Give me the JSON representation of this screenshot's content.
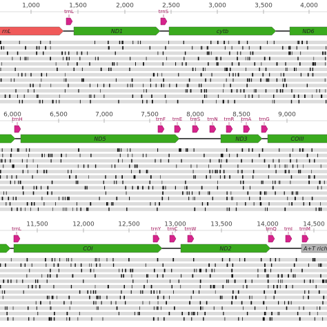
{
  "panels": [
    {
      "ruler": [
        "1,000",
        "1,500",
        "2,000",
        "2,500",
        "3,000",
        "3,500",
        "4,000"
      ],
      "genes": [
        {
          "label": "rnL"
        },
        {
          "label": "ND1"
        },
        {
          "label": "cytb"
        },
        {
          "label": "ND6"
        }
      ],
      "trnas": [
        {
          "label": "trnL"
        },
        {
          "label": "trnS"
        }
      ]
    },
    {
      "ruler": [
        "6,000",
        "6,500",
        "7,000",
        "7,500",
        "8,000",
        "8,500",
        "9,000"
      ],
      "genes": [
        {
          "label": "ND5"
        },
        {
          "label": "ND3"
        },
        {
          "label": "COIII"
        }
      ],
      "trnas": [
        {
          "label": "trnH"
        },
        {
          "label": "trnF"
        },
        {
          "label": "trnE"
        },
        {
          "label": "trnS"
        },
        {
          "label": "trnN"
        },
        {
          "label": "trnR"
        },
        {
          "label": "trnA"
        },
        {
          "label": "trnG"
        }
      ]
    },
    {
      "ruler": [
        "11,500",
        "12,000",
        "12,500",
        "13,000",
        "13,500",
        "14,000",
        "14,500"
      ],
      "genes": [
        {
          "label": "COI"
        },
        {
          "label": "ND2"
        },
        {
          "label": "A+T rich"
        }
      ],
      "trnas": [
        {
          "label": "trnL"
        },
        {
          "label": "trnY"
        },
        {
          "label": "trnC"
        },
        {
          "label": "trnW"
        },
        {
          "label": "trnQ"
        },
        {
          "label": "trnI"
        },
        {
          "label": "trnM"
        }
      ]
    }
  ]
}
